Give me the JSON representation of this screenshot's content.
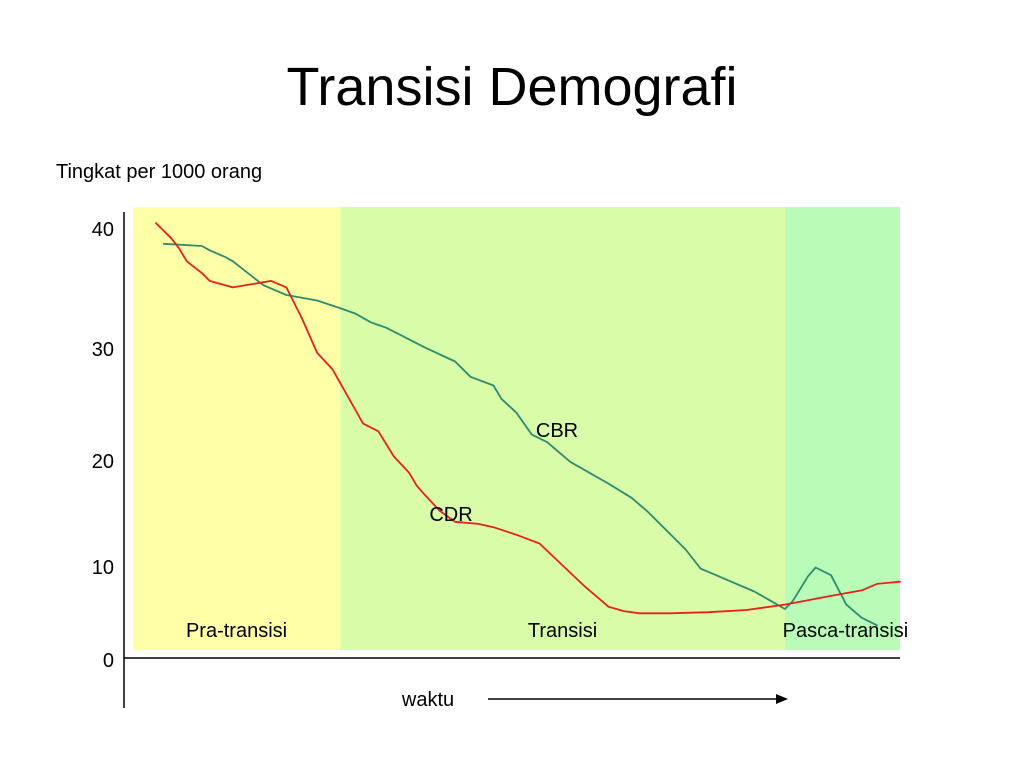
{
  "title": "Transisi Demografi",
  "chart_data": {
    "type": "line",
    "ylabel": "Tingkat per 1000 orang",
    "xlabel": "waktu",
    "ylim": [
      0,
      40
    ],
    "y_ticks": [
      "0",
      "10",
      "20",
      "30",
      "40"
    ],
    "phases": [
      {
        "label": "Pra-transisi",
        "x_range": [
          0,
          27
        ],
        "color": "#ffffa8"
      },
      {
        "label": "Transisi",
        "x_range": [
          27,
          85
        ],
        "color": "#d8fca8"
      },
      {
        "label": "Pasca-transisi",
        "x_range": [
          85,
          100
        ],
        "color": "#b8fcb8"
      }
    ],
    "series": [
      {
        "name": "CBR",
        "color": "#2e8b6e",
        "x": [
          4,
          9,
          10,
          12,
          13,
          17,
          20,
          24,
          27,
          29,
          31,
          33,
          35,
          38,
          42,
          44,
          47,
          48,
          50,
          52,
          54,
          57,
          62,
          65,
          67,
          72,
          74,
          78,
          81,
          83,
          85,
          86,
          88,
          89,
          91,
          93,
          95,
          97
        ],
        "y": [
          38.0,
          37.8,
          37.4,
          36.8,
          36.4,
          34.2,
          33.3,
          32.8,
          32.1,
          31.6,
          30.8,
          30.3,
          29.6,
          28.5,
          27.2,
          25.8,
          25.0,
          23.8,
          22.5,
          20.5,
          19.8,
          18.0,
          16.0,
          14.7,
          13.5,
          10.0,
          8.2,
          7.0,
          6.1,
          5.3,
          4.5,
          5.2,
          7.5,
          8.3,
          7.6,
          4.9,
          3.7,
          3.0
        ]
      },
      {
        "name": "CDR",
        "color": "#e8211c",
        "x": [
          3,
          5,
          6,
          7,
          9,
          10,
          13,
          18,
          20,
          22,
          24,
          26,
          28,
          30,
          32,
          34,
          36,
          37,
          38,
          40,
          42,
          45,
          47,
          50,
          53,
          56,
          59,
          61,
          62,
          64,
          66,
          70,
          75,
          80,
          85,
          88,
          91,
          95,
          97,
          100
        ],
        "y": [
          39.9,
          38.5,
          37.6,
          36.4,
          35.3,
          34.6,
          34.0,
          34.6,
          34.0,
          31.2,
          28.0,
          26.5,
          24.0,
          21.5,
          20.8,
          18.5,
          17.0,
          15.8,
          15.0,
          13.5,
          12.5,
          12.3,
          12.0,
          11.3,
          10.5,
          8.5,
          6.5,
          5.3,
          4.7,
          4.3,
          4.1,
          4.1,
          4.2,
          4.4,
          4.9,
          5.3,
          5.7,
          6.2,
          6.8,
          7.0
        ]
      }
    ]
  }
}
